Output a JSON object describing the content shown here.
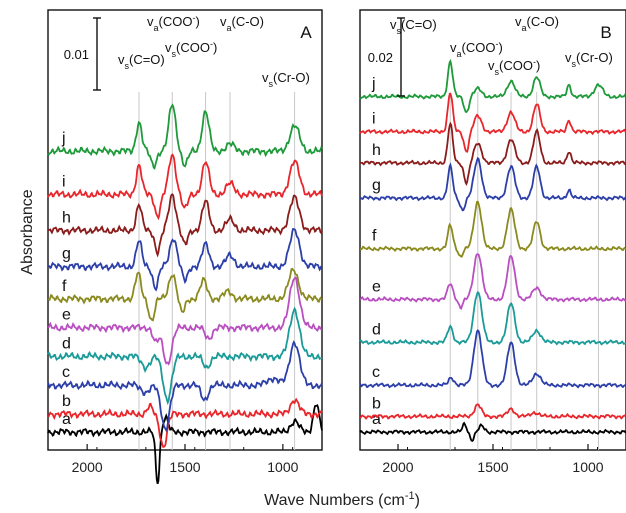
{
  "figure": {
    "ylabel": "Absorbance",
    "xlabel": "Wave Numbers (cm",
    "xlabel_sup": "-1",
    "xlabel_close": ")"
  },
  "chart_data": [
    {
      "type": "line",
      "panel": "A",
      "xlim": [
        2200,
        800
      ],
      "x_reversed": true,
      "xticks": [
        2000,
        1500,
        1000
      ],
      "scale_bar": "0.01",
      "reference_lines": [
        1735,
        1565,
        1395,
        1270,
        940
      ],
      "band_labels": [
        {
          "main": "v",
          "sub": "s",
          "rest": "(C=O)"
        },
        {
          "main": "v",
          "sub": "a",
          "rest": "(COO",
          "sup": "-",
          "close": ")"
        },
        {
          "main": "v",
          "sub": "s",
          "rest": "(COO",
          "sup": "-",
          "close": ")"
        },
        {
          "main": "v",
          "sub": "a",
          "rest": "(C-O)"
        },
        {
          "main": "v",
          "sub": "s",
          "rest": "(Cr-O)"
        }
      ],
      "series": [
        {
          "name": "a",
          "color": "#000000",
          "baseline": 0.0,
          "bands": [
            {
              "x": 1640,
              "h": -0.007,
              "w": 14
            },
            {
              "x": 1600,
              "h": 0.002,
              "w": 20
            },
            {
              "x": 940,
              "h": 0.0015,
              "w": 30
            },
            {
              "x": 830,
              "h": 0.004,
              "w": 20
            }
          ]
        },
        {
          "name": "b",
          "color": "#e8262b",
          "baseline": 0.0025,
          "bands": [
            {
              "x": 1610,
              "h": -0.0045,
              "w": 25
            },
            {
              "x": 1680,
              "h": 0.001,
              "w": 20
            },
            {
              "x": 940,
              "h": 0.002,
              "w": 30
            }
          ]
        },
        {
          "name": "c",
          "color": "#2c3fa8",
          "baseline": 0.0065,
          "bands": [
            {
              "x": 1600,
              "h": -0.006,
              "w": 30
            },
            {
              "x": 1700,
              "h": -0.001,
              "w": 30
            },
            {
              "x": 1400,
              "h": -0.002,
              "w": 25
            },
            {
              "x": 940,
              "h": 0.006,
              "w": 35
            },
            {
              "x": 1050,
              "h": 0.001,
              "w": 40
            }
          ]
        },
        {
          "name": "d",
          "color": "#1a9b98",
          "baseline": 0.0105,
          "bands": [
            {
              "x": 1590,
              "h": -0.006,
              "w": 30
            },
            {
              "x": 1700,
              "h": -0.0015,
              "w": 30
            },
            {
              "x": 1390,
              "h": -0.0015,
              "w": 25
            },
            {
              "x": 940,
              "h": 0.0065,
              "w": 35
            }
          ]
        },
        {
          "name": "e",
          "color": "#b94fc0",
          "baseline": 0.0145,
          "bands": [
            {
              "x": 1590,
              "h": -0.005,
              "w": 30
            },
            {
              "x": 1650,
              "h": -0.002,
              "w": 20
            },
            {
              "x": 1380,
              "h": -0.0015,
              "w": 25
            },
            {
              "x": 940,
              "h": 0.007,
              "w": 35
            }
          ]
        },
        {
          "name": "f",
          "color": "#8a8a1e",
          "baseline": 0.0185,
          "bands": [
            {
              "x": 1740,
              "h": 0.0035,
              "w": 20
            },
            {
              "x": 1670,
              "h": -0.003,
              "w": 20
            },
            {
              "x": 1565,
              "h": 0.0035,
              "w": 25
            },
            {
              "x": 1515,
              "h": -0.002,
              "w": 20
            },
            {
              "x": 1405,
              "h": 0.0025,
              "w": 25
            },
            {
              "x": 1280,
              "h": 0.001,
              "w": 30
            },
            {
              "x": 945,
              "h": 0.004,
              "w": 35
            }
          ]
        },
        {
          "name": "g",
          "color": "#2c3fa8",
          "baseline": 0.023,
          "bands": [
            {
              "x": 1735,
              "h": 0.0035,
              "w": 20
            },
            {
              "x": 1650,
              "h": -0.003,
              "w": 20
            },
            {
              "x": 1560,
              "h": 0.004,
              "w": 25
            },
            {
              "x": 1500,
              "h": -0.002,
              "w": 20
            },
            {
              "x": 1395,
              "h": 0.003,
              "w": 25
            },
            {
              "x": 1270,
              "h": 0.0015,
              "w": 30
            },
            {
              "x": 940,
              "h": 0.005,
              "w": 35
            }
          ]
        },
        {
          "name": "h",
          "color": "#8b1c1c",
          "baseline": 0.028,
          "bands": [
            {
              "x": 1735,
              "h": 0.0035,
              "w": 20
            },
            {
              "x": 1640,
              "h": -0.003,
              "w": 20
            },
            {
              "x": 1565,
              "h": 0.005,
              "w": 25
            },
            {
              "x": 1500,
              "h": -0.002,
              "w": 20
            },
            {
              "x": 1395,
              "h": 0.004,
              "w": 25
            },
            {
              "x": 1270,
              "h": 0.0015,
              "w": 30
            },
            {
              "x": 940,
              "h": 0.0045,
              "w": 35
            }
          ]
        },
        {
          "name": "i",
          "color": "#e8262b",
          "baseline": 0.033,
          "bands": [
            {
              "x": 1735,
              "h": 0.004,
              "w": 20
            },
            {
              "x": 1640,
              "h": -0.003,
              "w": 20
            },
            {
              "x": 1565,
              "h": 0.0055,
              "w": 25
            },
            {
              "x": 1500,
              "h": -0.002,
              "w": 20
            },
            {
              "x": 1395,
              "h": 0.0045,
              "w": 25
            },
            {
              "x": 1270,
              "h": 0.0015,
              "w": 30
            },
            {
              "x": 940,
              "h": 0.0045,
              "w": 35
            }
          ]
        },
        {
          "name": "j",
          "color": "#1e9a3a",
          "baseline": 0.039,
          "bands": [
            {
              "x": 1735,
              "h": 0.004,
              "w": 20
            },
            {
              "x": 1660,
              "h": -0.002,
              "w": 20
            },
            {
              "x": 1565,
              "h": 0.0065,
              "w": 25
            },
            {
              "x": 1500,
              "h": -0.002,
              "w": 20
            },
            {
              "x": 1395,
              "h": 0.0055,
              "w": 25
            },
            {
              "x": 1270,
              "h": 0.001,
              "w": 30
            },
            {
              "x": 940,
              "h": 0.0035,
              "w": 35
            }
          ]
        }
      ]
    },
    {
      "type": "line",
      "panel": "B",
      "xlim": [
        2200,
        800
      ],
      "x_reversed": true,
      "xticks": [
        2000,
        1500,
        1000
      ],
      "scale_bar": "0.02",
      "reference_lines": [
        1725,
        1580,
        1405,
        1270,
        945
      ],
      "band_labels": [
        {
          "main": "v",
          "sub": "s",
          "rest": "(C=O)"
        },
        {
          "main": "v",
          "sub": "a",
          "rest": "(COO",
          "sup": "-",
          "close": ")"
        },
        {
          "main": "v",
          "sub": "s",
          "rest": "(COO",
          "sup": "-",
          "close": ")"
        },
        {
          "main": "v",
          "sub": "a",
          "rest": "(C-O)"
        },
        {
          "main": "v",
          "sub": "s",
          "rest": "(Cr-O)"
        }
      ],
      "series": [
        {
          "name": "a",
          "color": "#000000",
          "baseline": 0.0,
          "bands": [
            {
              "x": 1650,
              "h": 0.002,
              "w": 15
            },
            {
              "x": 1610,
              "h": -0.002,
              "w": 15
            },
            {
              "x": 1560,
              "h": 0.0015,
              "w": 20
            }
          ]
        },
        {
          "name": "b",
          "color": "#e8262b",
          "baseline": 0.004,
          "bands": [
            {
              "x": 1580,
              "h": 0.003,
              "w": 25
            },
            {
              "x": 1405,
              "h": 0.002,
              "w": 25
            },
            {
              "x": 1280,
              "h": 0.001,
              "w": 30
            }
          ]
        },
        {
          "name": "c",
          "color": "#2c3fa8",
          "baseline": 0.012,
          "bands": [
            {
              "x": 1720,
              "h": 0.002,
              "w": 20
            },
            {
              "x": 1580,
              "h": 0.014,
              "w": 30
            },
            {
              "x": 1405,
              "h": 0.011,
              "w": 28
            },
            {
              "x": 1270,
              "h": 0.003,
              "w": 30
            }
          ]
        },
        {
          "name": "d",
          "color": "#1a9b98",
          "baseline": 0.023,
          "bands": [
            {
              "x": 1725,
              "h": 0.004,
              "w": 20
            },
            {
              "x": 1580,
              "h": 0.013,
              "w": 30
            },
            {
              "x": 1405,
              "h": 0.01,
              "w": 28
            },
            {
              "x": 1270,
              "h": 0.003,
              "w": 30
            }
          ]
        },
        {
          "name": "e",
          "color": "#b94fc0",
          "baseline": 0.034,
          "bands": [
            {
              "x": 1725,
              "h": 0.004,
              "w": 20
            },
            {
              "x": 1670,
              "h": -0.002,
              "w": 15
            },
            {
              "x": 1580,
              "h": 0.012,
              "w": 30
            },
            {
              "x": 1405,
              "h": 0.011,
              "w": 28
            },
            {
              "x": 1270,
              "h": 0.003,
              "w": 30
            }
          ]
        },
        {
          "name": "f",
          "color": "#8a8a1e",
          "baseline": 0.047,
          "bands": [
            {
              "x": 1725,
              "h": 0.006,
              "w": 18
            },
            {
              "x": 1670,
              "h": -0.002,
              "w": 15
            },
            {
              "x": 1580,
              "h": 0.012,
              "w": 28
            },
            {
              "x": 1405,
              "h": 0.01,
              "w": 28
            },
            {
              "x": 1270,
              "h": 0.007,
              "w": 25
            }
          ]
        },
        {
          "name": "g",
          "color": "#2c3fa8",
          "baseline": 0.06,
          "bands": [
            {
              "x": 1725,
              "h": 0.008,
              "w": 18
            },
            {
              "x": 1660,
              "h": -0.003,
              "w": 18
            },
            {
              "x": 1580,
              "h": 0.01,
              "w": 28
            },
            {
              "x": 1405,
              "h": 0.008,
              "w": 28
            },
            {
              "x": 1270,
              "h": 0.008,
              "w": 25
            },
            {
              "x": 1100,
              "h": 0.002,
              "w": 15
            }
          ]
        },
        {
          "name": "h",
          "color": "#8b1c1c",
          "baseline": 0.069,
          "bands": [
            {
              "x": 1725,
              "h": 0.01,
              "w": 18
            },
            {
              "x": 1640,
              "h": -0.005,
              "w": 18
            },
            {
              "x": 1580,
              "h": 0.005,
              "w": 28
            },
            {
              "x": 1405,
              "h": 0.006,
              "w": 28
            },
            {
              "x": 1270,
              "h": 0.008,
              "w": 25
            },
            {
              "x": 1100,
              "h": 0.003,
              "w": 15
            }
          ]
        },
        {
          "name": "i",
          "color": "#e8262b",
          "baseline": 0.077,
          "bands": [
            {
              "x": 1725,
              "h": 0.01,
              "w": 18
            },
            {
              "x": 1640,
              "h": -0.005,
              "w": 18
            },
            {
              "x": 1580,
              "h": 0.004,
              "w": 28
            },
            {
              "x": 1405,
              "h": 0.005,
              "w": 28
            },
            {
              "x": 1270,
              "h": 0.007,
              "w": 25
            },
            {
              "x": 1100,
              "h": 0.003,
              "w": 15
            }
          ]
        },
        {
          "name": "j",
          "color": "#1e9a3a",
          "baseline": 0.086,
          "bands": [
            {
              "x": 1725,
              "h": 0.009,
              "w": 18
            },
            {
              "x": 1640,
              "h": -0.004,
              "w": 18
            },
            {
              "x": 1580,
              "h": 0.002,
              "w": 28
            },
            {
              "x": 1405,
              "h": 0.004,
              "w": 28
            },
            {
              "x": 1270,
              "h": 0.005,
              "w": 25
            },
            {
              "x": 1100,
              "h": 0.003,
              "w": 15
            },
            {
              "x": 945,
              "h": 0.003,
              "w": 30
            }
          ]
        }
      ]
    }
  ]
}
